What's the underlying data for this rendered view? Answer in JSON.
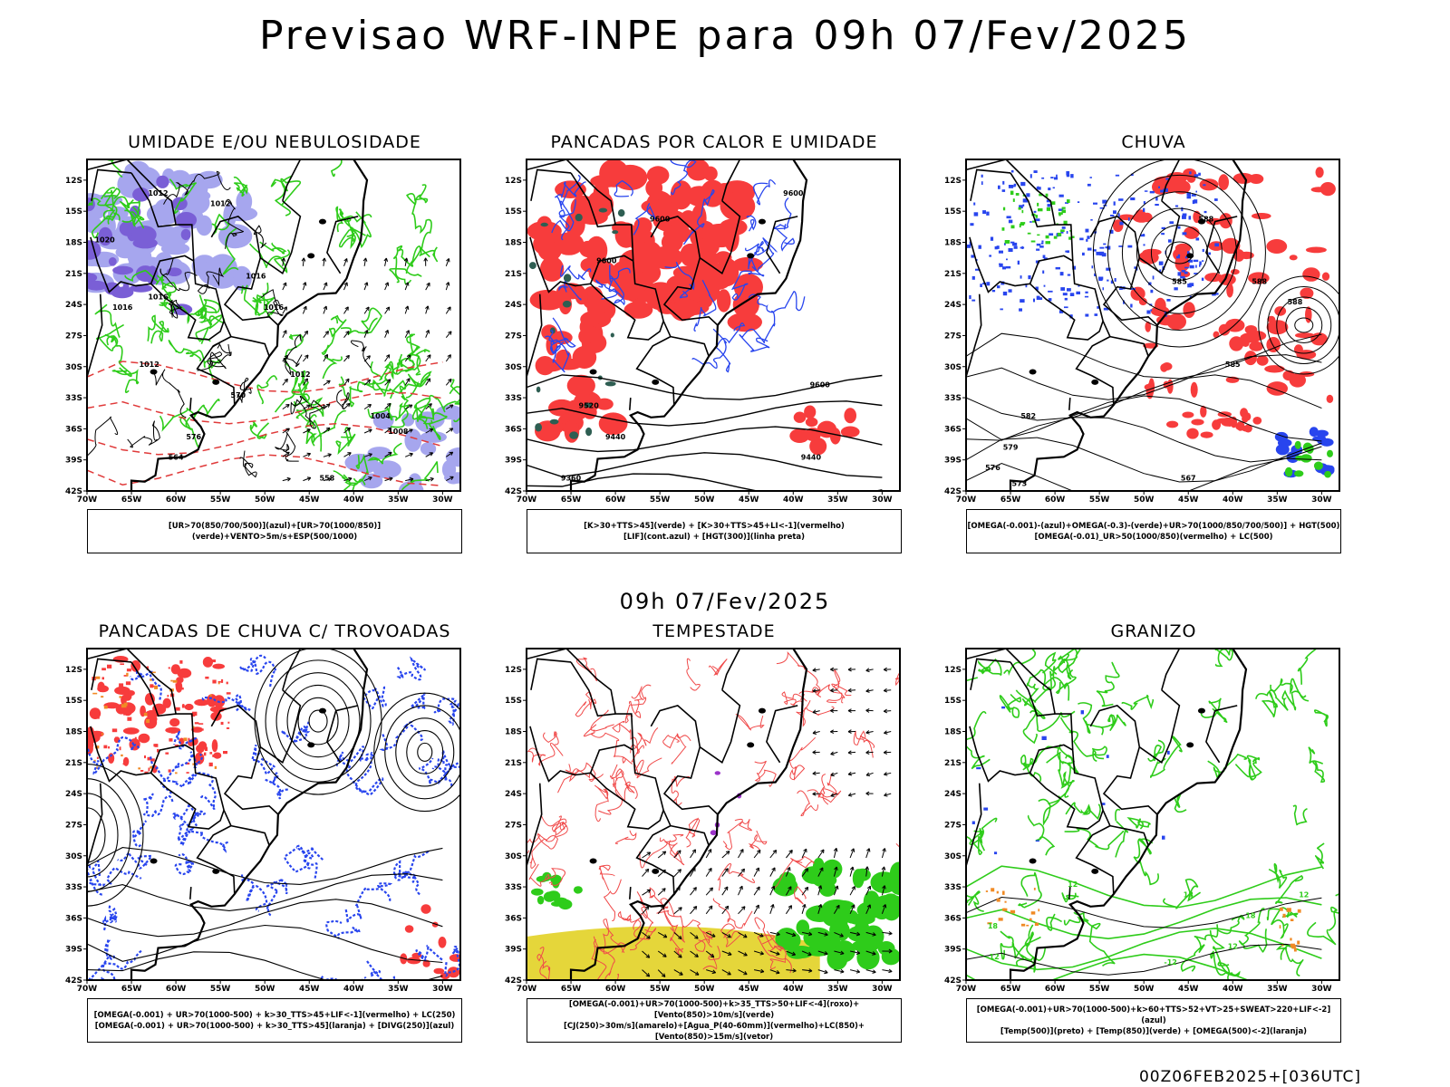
{
  "title": "Previsao WRF-INPE  para 09h 07/Fev/2025",
  "mid_time": "09h 07/Fev/2025",
  "footer": "00Z06FEB2025+[036UTC]",
  "colors": {
    "red": "#f73c3c",
    "green": "#2ecc1a",
    "blue": "#2845ee",
    "lavender": "#a6a6ee",
    "purple": "#7a5fd6",
    "darkgreen": "#2e5e52",
    "yellow": "#e5d63a",
    "orange": "#f08a24",
    "black": "#000000"
  },
  "chart_data": [
    {
      "type": "map",
      "title": "UMIDADE E/OU NEBULOSIDADE",
      "legend": [
        "[UR>70(850/700/500)](azul)+[UR>70(1000/850)](verde)+VENTO>5m/s+ESP(500/1000)"
      ],
      "lat_ticks": [
        "12S",
        "15S",
        "18S",
        "21S",
        "24S",
        "27S",
        "30S",
        "33S",
        "36S",
        "39S",
        "42S"
      ],
      "lon_ticks": [
        "70W",
        "65W",
        "60W",
        "55W",
        "50W",
        "45W",
        "40W",
        "35W",
        "30W"
      ],
      "contour_labels": [
        "1012",
        "1012",
        "1016",
        "1016",
        "1016",
        "1016",
        "1012",
        "1012",
        "1020",
        "1004",
        "1008",
        "576",
        "570",
        "564",
        "558"
      ]
    },
    {
      "type": "map",
      "title": "PANCADAS POR CALOR E UMIDADE",
      "legend": [
        "[K>30+TTS>45](verde) + [K>30+TTS>45+LI<-1](vermelho)",
        "[LIF](cont.azul) + [HGT(300)](linha preta)"
      ],
      "lat_ticks": [
        "12S",
        "15S",
        "18S",
        "21S",
        "24S",
        "27S",
        "30S",
        "33S",
        "36S",
        "39S",
        "42S"
      ],
      "lon_ticks": [
        "70W",
        "65W",
        "60W",
        "55W",
        "50W",
        "45W",
        "40W",
        "35W",
        "30W"
      ],
      "contour_labels": [
        "9600",
        "9600",
        "9600",
        "9600",
        "9520",
        "9440",
        "9440",
        "9360"
      ]
    },
    {
      "type": "map",
      "title": "CHUVA",
      "legend": [
        "[OMEGA(-0.001)-(azul)+OMEGA(-0.3)-(verde)+UR>70(1000/850/700/500)] + HGT(500)",
        "[OMEGA(-0.01)_UR>50(1000/850)(vermelho) + LC(500)"
      ],
      "lat_ticks": [
        "12S",
        "15S",
        "18S",
        "21S",
        "24S",
        "27S",
        "30S",
        "33S",
        "36S",
        "39S",
        "42S"
      ],
      "lon_ticks": [
        "70W",
        "65W",
        "60W",
        "55W",
        "50W",
        "45W",
        "40W",
        "35W",
        "30W"
      ],
      "contour_labels": [
        "588",
        "588",
        "588",
        "585",
        "585",
        "582",
        "579",
        "576",
        "573",
        "567"
      ]
    },
    {
      "type": "map",
      "title": "PANCADAS DE CHUVA C/ TROVOADAS",
      "legend": [
        "[OMEGA(-0.001) + UR>70(1000-500) + k>30_TTS>45+LIF<-1](vermelho) + LC(250)",
        "[OMEGA(-0.001) + UR>70(1000-500) + k>30_TTS>45](laranja) + [DIVG(250)](azul)"
      ],
      "lat_ticks": [
        "12S",
        "15S",
        "18S",
        "21S",
        "24S",
        "27S",
        "30S",
        "33S",
        "36S",
        "39S",
        "42S"
      ],
      "lon_ticks": [
        "70W",
        "65W",
        "60W",
        "55W",
        "50W",
        "45W",
        "40W",
        "35W",
        "30W"
      ],
      "contour_labels": []
    },
    {
      "type": "map",
      "title": "TEMPESTADE",
      "legend": [
        "[OMEGA(-0.001)+UR>70(1000-500)+k>35_TTS>50+LIF<-4](roxo)+[Vento(850)>10m/s](verde)",
        "[CJ(250)>30m/s](amarelo)+[Agua_P(40-60mm)](vermelho)+LC(850)+[Vento(850)>15m/s](vetor)"
      ],
      "lat_ticks": [
        "12S",
        "15S",
        "18S",
        "21S",
        "24S",
        "27S",
        "30S",
        "33S",
        "36S",
        "39S",
        "42S"
      ],
      "lon_ticks": [
        "70W",
        "65W",
        "60W",
        "55W",
        "50W",
        "45W",
        "40W",
        "35W",
        "30W"
      ],
      "contour_labels": []
    },
    {
      "type": "map",
      "title": "GRANIZO",
      "legend": [
        "[OMEGA(-0.001)+UR>70(1000-500)+k>60+TTS>52+VT>25+SWEAT>220+LIF<-2](azul)",
        "[Temp(500)](preto) + [Temp(850)](verde) + [OMEGA(500)<-2](laranja)"
      ],
      "lat_ticks": [
        "12S",
        "15S",
        "18S",
        "21S",
        "24S",
        "27S",
        "30S",
        "33S",
        "36S",
        "39S",
        "42S"
      ],
      "lon_ticks": [
        "70W",
        "65W",
        "60W",
        "55W",
        "50W",
        "45W",
        "40W",
        "35W",
        "30W"
      ],
      "contour_labels": [
        "-12",
        "-12",
        "12",
        "12",
        "12",
        "18",
        "18",
        "18"
      ]
    }
  ]
}
